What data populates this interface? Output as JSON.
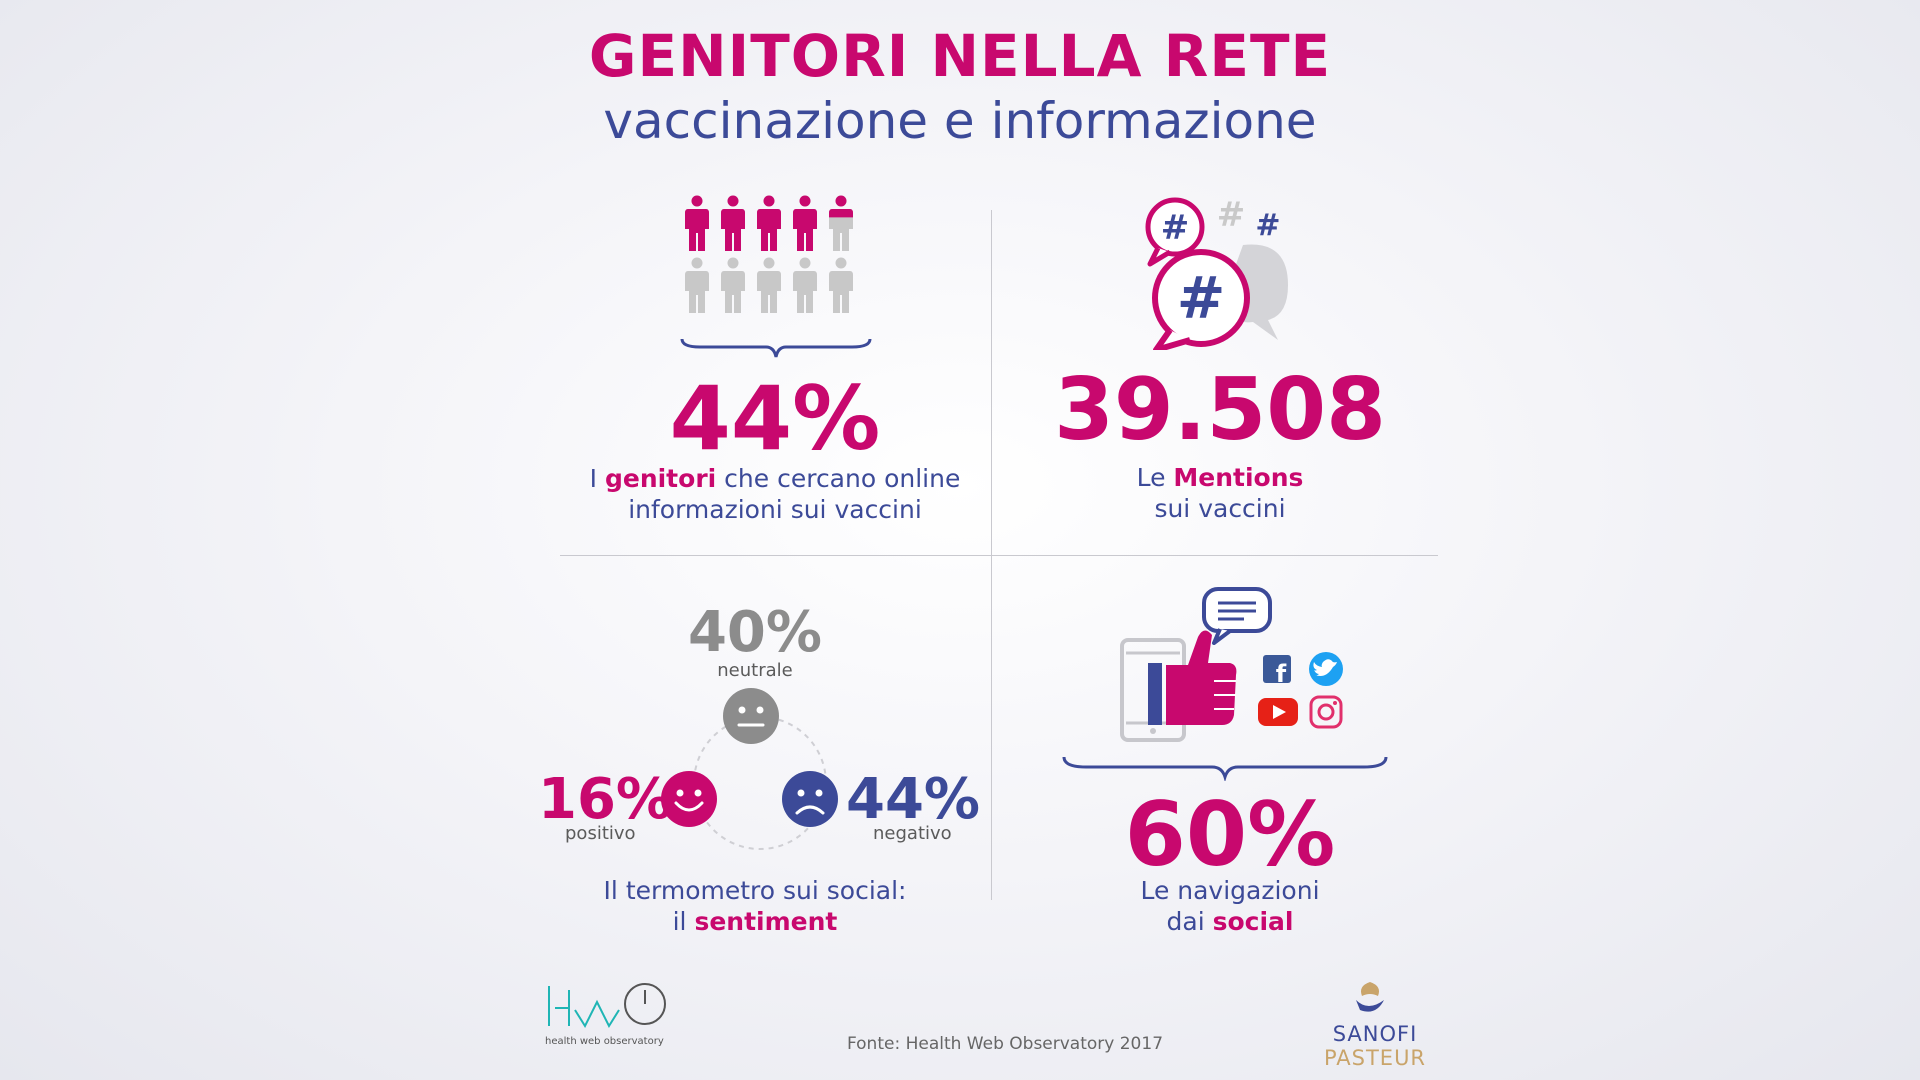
{
  "header": {
    "title": "GENITORI NELLA RETE",
    "subtitle": "vaccinazione e informazione"
  },
  "stat_parents": {
    "value": "44%",
    "fraction": 0.44,
    "caption_pre": "I ",
    "caption_bold": "genitori",
    "caption_post": " che cercano online",
    "caption_line2": "informazioni sui vaccini"
  },
  "stat_mentions": {
    "value": "39.508",
    "caption_pre": "Le ",
    "caption_bold": "Mentions",
    "caption_line2": "sui vaccini",
    "icon": "hashtag-speech-bubbles-icon"
  },
  "stat_sentiment": {
    "neutral": {
      "value": "40%",
      "label": "neutrale"
    },
    "positive": {
      "value": "16%",
      "label": "positivo"
    },
    "negative": {
      "value": "44%",
      "label": "negativo"
    },
    "caption_line1": "Il termometro sui social:",
    "caption_pre2": "il ",
    "caption_bold2": "sentiment"
  },
  "stat_social": {
    "value": "60%",
    "caption_line1": "Le navigazioni",
    "caption_pre2": "dai ",
    "caption_bold2": "social",
    "icons": [
      "tablet-icon",
      "thumbs-up-icon",
      "chat-bubble-icon",
      "facebook-icon",
      "twitter-icon",
      "youtube-icon",
      "instagram-icon"
    ]
  },
  "footer": {
    "source": "Fonte: Health Web Observatory 2017",
    "hwo_logo_text": "HWO",
    "hwo_caption": "health web observatory",
    "sanofi_left": "SANOFI",
    "sanofi_right": "PASTEUR"
  },
  "colors": {
    "magenta": "#c8086e",
    "blue": "#3c4a98",
    "grey": "#c8c8c8",
    "facebook": "#3b5998",
    "twitter": "#1da1f2",
    "youtube": "#e62117",
    "instagram": "#e1306c"
  }
}
